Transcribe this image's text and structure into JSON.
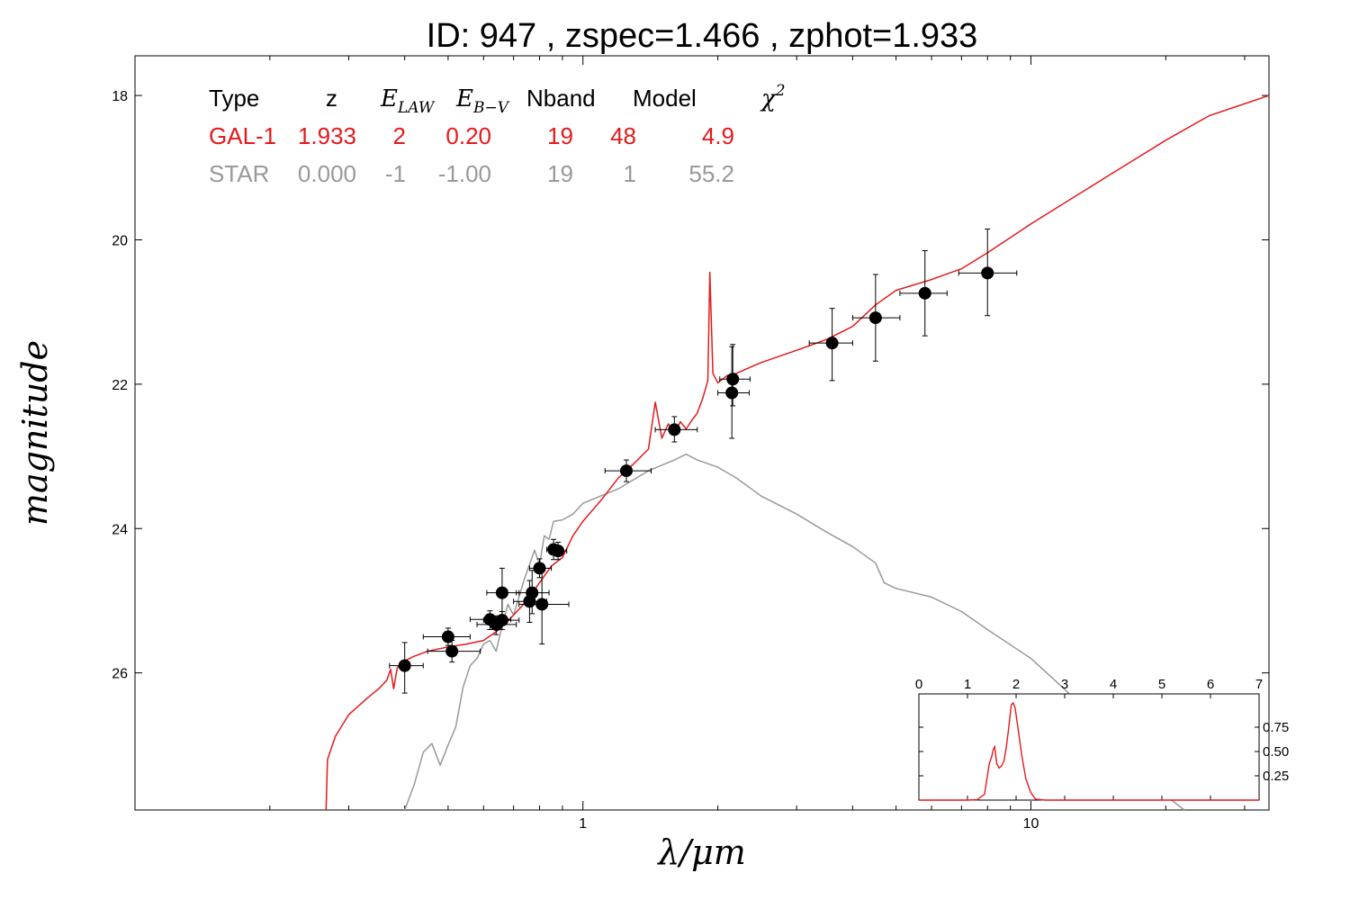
{
  "title": "ID:  947   , zspec=1.466 , zphot=1.933",
  "chart_data": {
    "type": "scatter",
    "xlabel": "λ/μm",
    "ylabel": "magnitude",
    "xscale": "log",
    "xlim": [
      0.1,
      34
    ],
    "ylim": [
      27.9,
      17.45
    ],
    "x_ticks": [
      {
        "v": 1,
        "label": "1"
      },
      {
        "v": 10,
        "label": "10"
      }
    ],
    "y_ticks": [
      {
        "v": 18,
        "label": "18"
      },
      {
        "v": 20,
        "label": "20"
      },
      {
        "v": 22,
        "label": "22"
      },
      {
        "v": 24,
        "label": "24"
      },
      {
        "v": 26,
        "label": "26"
      }
    ],
    "points": [
      {
        "x": 0.4,
        "y": 25.9,
        "xerr": [
          0.37,
          0.44
        ],
        "yerr": [
          25.58,
          26.28
        ]
      },
      {
        "x": 0.5,
        "y": 25.5,
        "xerr": [
          0.44,
          0.56
        ],
        "yerr": [
          25.38,
          25.62
        ]
      },
      {
        "x": 0.51,
        "y": 25.7,
        "xerr": [
          0.45,
          0.59
        ],
        "yerr": [
          25.55,
          25.85
        ]
      },
      {
        "x": 0.62,
        "y": 25.26,
        "xerr": [
          0.56,
          0.69
        ],
        "yerr": [
          25.14,
          25.4
        ]
      },
      {
        "x": 0.64,
        "y": 25.33,
        "xerr": [
          0.58,
          0.71
        ],
        "yerr": [
          25.21,
          25.47
        ]
      },
      {
        "x": 0.66,
        "y": 25.27,
        "xerr": [
          0.6,
          0.72
        ],
        "yerr": [
          25.15,
          25.4
        ]
      },
      {
        "x": 0.66,
        "y": 24.89,
        "xerr": [
          0.61,
          0.72
        ],
        "yerr": [
          24.55,
          25.2
        ]
      },
      {
        "x": 0.76,
        "y": 25.01,
        "xerr": [
          0.7,
          0.83
        ],
        "yerr": [
          24.72,
          25.3
        ]
      },
      {
        "x": 0.77,
        "y": 24.89,
        "xerr": [
          0.71,
          0.84
        ],
        "yerr": [
          24.58,
          25.18
        ]
      },
      {
        "x": 0.8,
        "y": 24.55,
        "xerr": [
          0.76,
          0.85
        ],
        "yerr": [
          24.42,
          24.68
        ]
      },
      {
        "x": 0.81,
        "y": 25.05,
        "xerr": [
          0.72,
          0.93
        ],
        "yerr": [
          24.55,
          25.6
        ]
      },
      {
        "x": 0.86,
        "y": 24.29,
        "xerr": [
          0.83,
          0.89
        ],
        "yerr": [
          24.15,
          24.43
        ]
      },
      {
        "x": 0.88,
        "y": 24.31,
        "xerr": [
          0.84,
          0.92
        ],
        "yerr": [
          24.19,
          24.43
        ]
      },
      {
        "x": 1.25,
        "y": 23.2,
        "xerr": [
          1.12,
          1.42
        ],
        "yerr": [
          23.05,
          23.35
        ]
      },
      {
        "x": 1.6,
        "y": 22.63,
        "xerr": [
          1.45,
          1.8
        ],
        "yerr": [
          22.45,
          22.8
        ]
      },
      {
        "x": 2.16,
        "y": 21.93,
        "xerr": [
          2.02,
          2.36
        ],
        "yerr": [
          21.45,
          22.3
        ]
      },
      {
        "x": 2.15,
        "y": 22.12,
        "xerr": [
          2.0,
          2.35
        ],
        "yerr": [
          21.48,
          22.75
        ]
      },
      {
        "x": 3.6,
        "y": 21.43,
        "xerr": [
          3.2,
          4.0
        ],
        "yerr": [
          20.95,
          21.95
        ]
      },
      {
        "x": 4.5,
        "y": 21.08,
        "xerr": [
          4.0,
          5.1
        ],
        "yerr": [
          20.48,
          21.68
        ]
      },
      {
        "x": 5.8,
        "y": 20.74,
        "xerr": [
          5.1,
          6.5
        ],
        "yerr": [
          20.15,
          21.33
        ]
      },
      {
        "x": 8.0,
        "y": 20.46,
        "xerr": [
          6.9,
          9.3
        ],
        "yerr": [
          19.85,
          21.05
        ]
      }
    ],
    "series": [
      {
        "name": "GAL-1",
        "color": "#e41a1c",
        "xy": [
          [
            0.267,
            27.9
          ],
          [
            0.269,
            27.2
          ],
          [
            0.28,
            26.88
          ],
          [
            0.3,
            26.58
          ],
          [
            0.33,
            26.35
          ],
          [
            0.35,
            26.22
          ],
          [
            0.365,
            26.1
          ],
          [
            0.372,
            25.95
          ],
          [
            0.378,
            26.22
          ],
          [
            0.385,
            25.93
          ],
          [
            0.395,
            25.85
          ],
          [
            0.42,
            25.77
          ],
          [
            0.45,
            25.7
          ],
          [
            0.5,
            25.64
          ],
          [
            0.55,
            25.6
          ],
          [
            0.6,
            25.55
          ],
          [
            0.65,
            25.4
          ],
          [
            0.7,
            25.2
          ],
          [
            0.75,
            25.0
          ],
          [
            0.8,
            24.75
          ],
          [
            0.85,
            24.52
          ],
          [
            0.9,
            24.4
          ],
          [
            0.95,
            24.1
          ],
          [
            1.0,
            23.9
          ],
          [
            1.1,
            23.6
          ],
          [
            1.2,
            23.3
          ],
          [
            1.3,
            23.1
          ],
          [
            1.4,
            22.9
          ],
          [
            1.45,
            22.25
          ],
          [
            1.5,
            22.75
          ],
          [
            1.55,
            22.55
          ],
          [
            1.6,
            22.68
          ],
          [
            1.65,
            22.52
          ],
          [
            1.7,
            22.62
          ],
          [
            1.75,
            22.5
          ],
          [
            1.8,
            22.4
          ],
          [
            1.85,
            22.2
          ],
          [
            1.9,
            21.95
          ],
          [
            1.92,
            20.45
          ],
          [
            1.95,
            21.85
          ],
          [
            2.0,
            21.98
          ],
          [
            2.1,
            21.88
          ],
          [
            2.2,
            21.85
          ],
          [
            2.5,
            21.7
          ],
          [
            3.0,
            21.53
          ],
          [
            3.5,
            21.38
          ],
          [
            4.0,
            21.2
          ],
          [
            4.5,
            20.9
          ],
          [
            5.0,
            20.7
          ],
          [
            6.0,
            20.55
          ],
          [
            7.0,
            20.4
          ],
          [
            8.0,
            20.18
          ],
          [
            10.0,
            19.78
          ],
          [
            15.0,
            19.1
          ],
          [
            20.0,
            18.62
          ],
          [
            25.0,
            18.28
          ],
          [
            34.0,
            18.0
          ]
        ]
      },
      {
        "name": "STAR",
        "color": "#999999",
        "xy": [
          [
            0.4,
            27.9
          ],
          [
            0.42,
            27.55
          ],
          [
            0.44,
            27.1
          ],
          [
            0.46,
            26.98
          ],
          [
            0.48,
            27.28
          ],
          [
            0.5,
            27.0
          ],
          [
            0.52,
            26.75
          ],
          [
            0.54,
            26.2
          ],
          [
            0.56,
            25.9
          ],
          [
            0.58,
            25.8
          ],
          [
            0.6,
            25.6
          ],
          [
            0.62,
            25.55
          ],
          [
            0.64,
            25.7
          ],
          [
            0.66,
            25.35
          ],
          [
            0.68,
            25.05
          ],
          [
            0.7,
            25.2
          ],
          [
            0.72,
            24.95
          ],
          [
            0.74,
            24.7
          ],
          [
            0.76,
            24.5
          ],
          [
            0.78,
            24.3
          ],
          [
            0.8,
            24.5
          ],
          [
            0.82,
            24.1
          ],
          [
            0.84,
            24.15
          ],
          [
            0.86,
            23.9
          ],
          [
            0.9,
            23.88
          ],
          [
            0.95,
            23.8
          ],
          [
            1.0,
            23.65
          ],
          [
            1.2,
            23.45
          ],
          [
            1.4,
            23.2
          ],
          [
            1.6,
            23.05
          ],
          [
            1.7,
            22.97
          ],
          [
            1.8,
            23.05
          ],
          [
            2.0,
            23.15
          ],
          [
            2.2,
            23.3
          ],
          [
            2.5,
            23.55
          ],
          [
            3.0,
            23.8
          ],
          [
            3.5,
            24.05
          ],
          [
            4.0,
            24.25
          ],
          [
            4.5,
            24.48
          ],
          [
            4.7,
            24.75
          ],
          [
            5.0,
            24.83
          ],
          [
            6.0,
            24.95
          ],
          [
            7.0,
            25.15
          ],
          [
            8.0,
            25.4
          ],
          [
            10.0,
            25.8
          ],
          [
            12.0,
            26.25
          ],
          [
            14.0,
            26.7
          ],
          [
            16.0,
            27.1
          ],
          [
            20.0,
            27.7
          ],
          [
            22.0,
            27.9
          ]
        ]
      }
    ],
    "inset": {
      "xlim": [
        0,
        7
      ],
      "ylim": [
        0,
        1
      ],
      "x_ticks": [
        "0",
        "1",
        "2",
        "3",
        "4",
        "5",
        "6",
        "7"
      ],
      "y_ticks": [
        {
          "v": 0.25,
          "label": "0.25"
        },
        {
          "v": 0.5,
          "label": "0.50"
        },
        {
          "v": 0.75,
          "label": "0.75"
        }
      ],
      "color": "#e41a1c",
      "xy": [
        [
          0,
          0
        ],
        [
          1.0,
          0
        ],
        [
          1.2,
          0.005
        ],
        [
          1.35,
          0.06
        ],
        [
          1.45,
          0.38
        ],
        [
          1.5,
          0.45
        ],
        [
          1.53,
          0.52
        ],
        [
          1.56,
          0.55
        ],
        [
          1.6,
          0.38
        ],
        [
          1.65,
          0.33
        ],
        [
          1.7,
          0.35
        ],
        [
          1.75,
          0.4
        ],
        [
          1.8,
          0.55
        ],
        [
          1.85,
          0.75
        ],
        [
          1.9,
          0.98
        ],
        [
          1.94,
          1.0
        ],
        [
          1.98,
          0.95
        ],
        [
          2.05,
          0.7
        ],
        [
          2.12,
          0.45
        ],
        [
          2.2,
          0.22
        ],
        [
          2.3,
          0.08
        ],
        [
          2.4,
          0.01
        ],
        [
          2.6,
          0
        ],
        [
          7,
          0
        ]
      ]
    }
  },
  "table": {
    "header": {
      "type": "Type",
      "z": "z",
      "elaw": "E",
      "elaw_sub": "LAW",
      "ebv": "E",
      "ebv_sub": "B−V",
      "nband": "Nband",
      "model": "Model",
      "chi": "χ",
      "chi_sup": "2"
    },
    "rows": [
      {
        "name": "row-gal",
        "color": "#e41a1c",
        "type": "GAL-1",
        "z": "1.933",
        "elaw": "2",
        "ebv": "0.20",
        "nband": "19",
        "model": "48",
        "chi2": "4.9"
      },
      {
        "name": "row-star",
        "color": "#999999",
        "type": "STAR",
        "z": "0.000",
        "elaw": "-1",
        "ebv": "-1.00",
        "nband": "19",
        "model": "1",
        "chi2": "55.2"
      }
    ]
  }
}
